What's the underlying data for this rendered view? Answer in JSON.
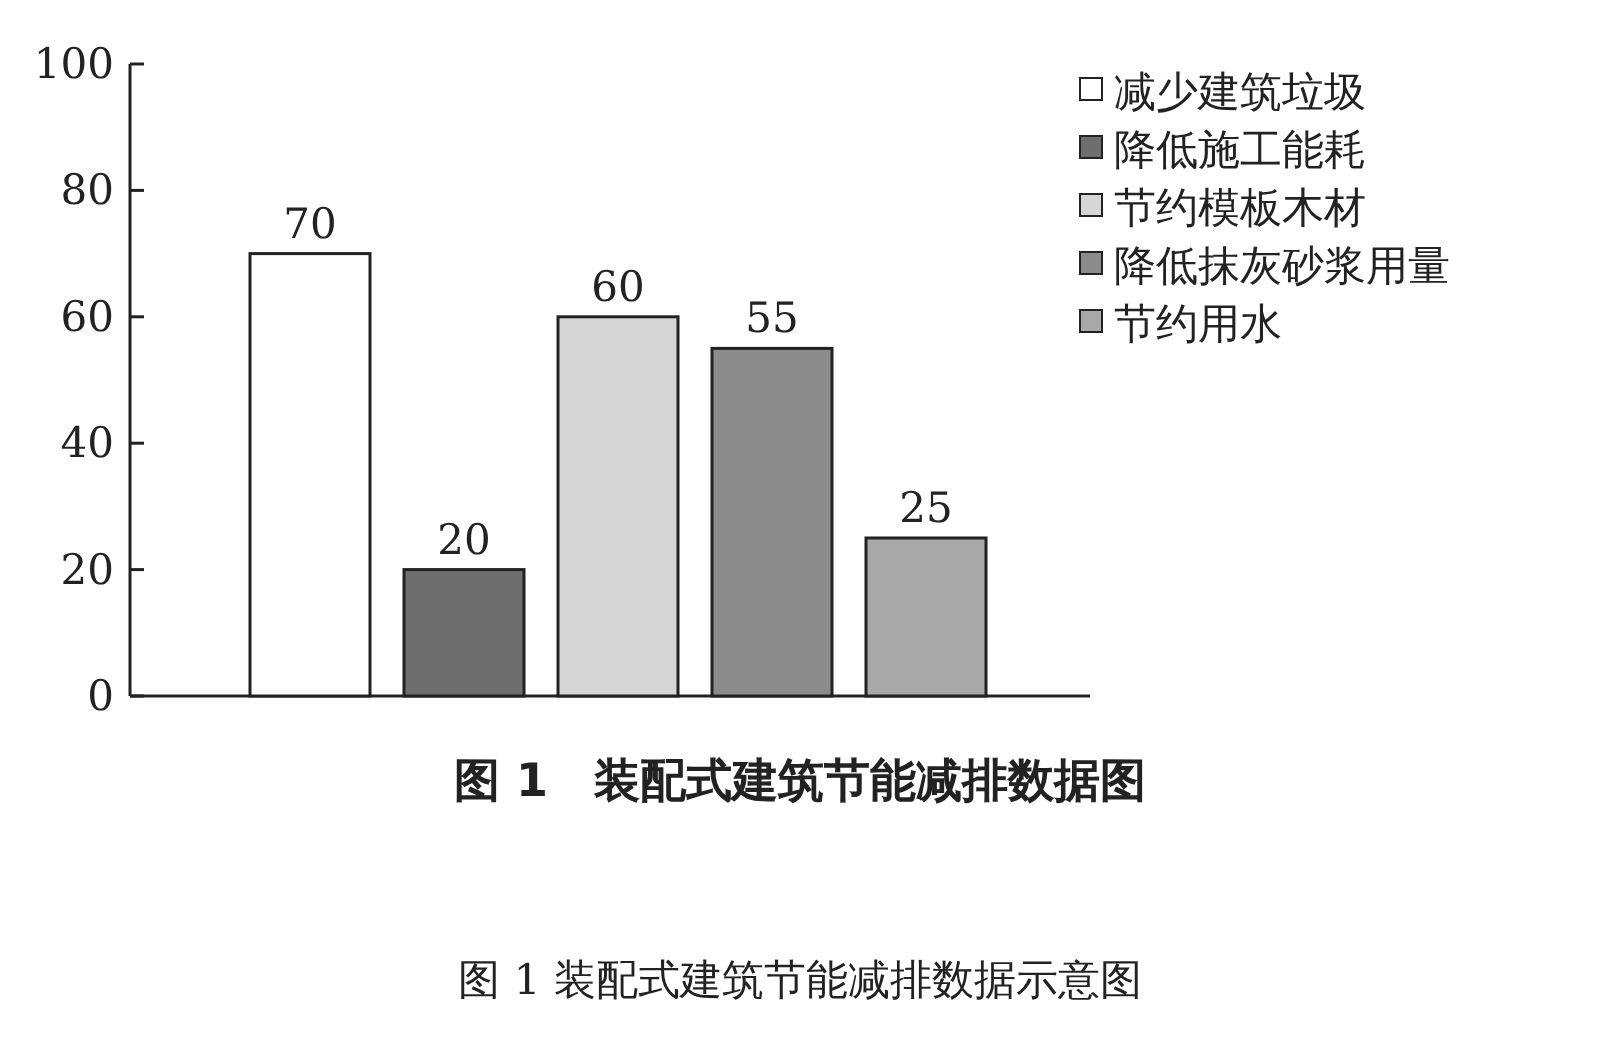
{
  "chart_data": {
    "type": "bar",
    "title": "图 1　装配式建筑节能减排数据图",
    "categories": [
      null,
      null,
      null,
      null,
      null
    ],
    "series": [
      {
        "name": "减少建筑垃圾",
        "color": "#ffffff",
        "values": [
          70,
          null,
          null,
          null,
          null
        ]
      },
      {
        "name": "降低施工能耗",
        "color": "#6e6e6e",
        "values": [
          null,
          20,
          null,
          null,
          null
        ]
      },
      {
        "name": "节约模板木材",
        "color": "#d6d6d6",
        "values": [
          null,
          null,
          60,
          null,
          null
        ]
      },
      {
        "name": "降低抹灰砂浆用量",
        "color": "#8c8c8c",
        "values": [
          null,
          null,
          null,
          55,
          null
        ]
      },
      {
        "name": "节约用水",
        "color": "#a8a8a8",
        "values": [
          null,
          null,
          null,
          null,
          25
        ]
      }
    ],
    "ylim": [
      0,
      100
    ],
    "yticks": [
      0,
      20,
      40,
      60,
      80,
      100
    ],
    "grid": false,
    "legend": "top right",
    "data_labels": true,
    "annotations": [
      "图 1 装配式建筑节能减排数据示意图"
    ]
  }
}
